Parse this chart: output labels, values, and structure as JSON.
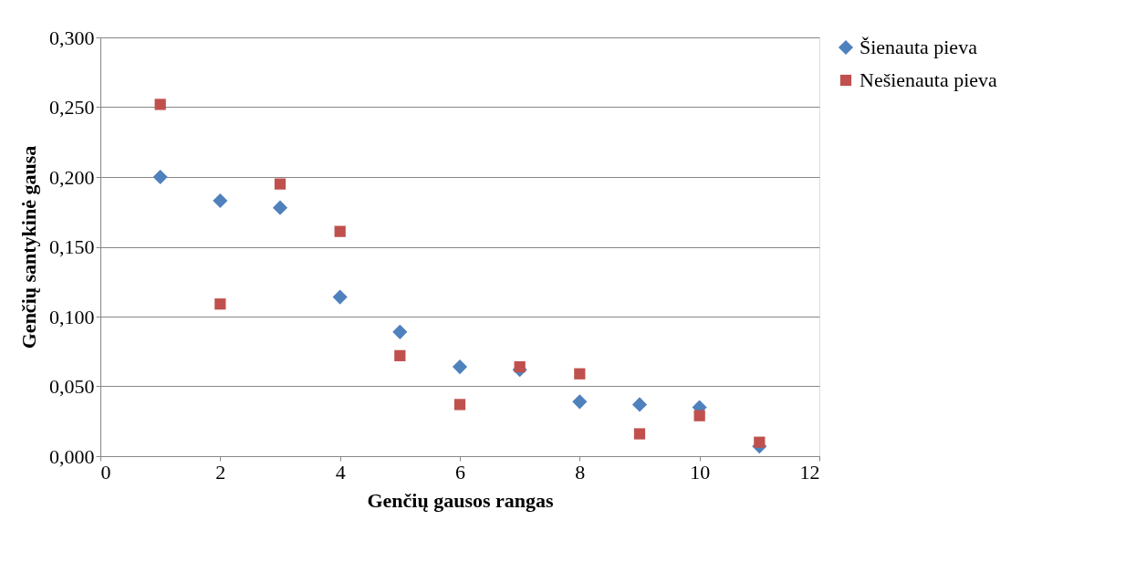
{
  "chart_data": {
    "type": "scatter",
    "xlabel": "Genčių gausos rangas",
    "ylabel": "Genčių santykinė gausa",
    "xlim": [
      0,
      12
    ],
    "xticks": [
      0,
      2,
      4,
      6,
      8,
      10,
      12
    ],
    "ylim": [
      0,
      0.3
    ],
    "yticks": [
      {
        "value": 0,
        "label": "0,000"
      },
      {
        "value": 0.05,
        "label": "0,050"
      },
      {
        "value": 0.1,
        "label": "0,100"
      },
      {
        "value": 0.15,
        "label": "0,150"
      },
      {
        "value": 0.2,
        "label": "0,200"
      },
      {
        "value": 0.25,
        "label": "0,250"
      },
      {
        "value": 0.3,
        "label": "0,300"
      }
    ],
    "grid": "y",
    "legend": "right",
    "series": [
      {
        "name": "Šienauta pieva",
        "color": "#4f81bd",
        "marker": "diamond",
        "x": [
          1,
          2,
          3,
          4,
          5,
          6,
          7,
          8,
          9,
          10,
          11
        ],
        "values": [
          0.2,
          0.183,
          0.178,
          0.114,
          0.089,
          0.064,
          0.062,
          0.039,
          0.037,
          0.035,
          0.007
        ]
      },
      {
        "name": "Nešienauta pieva",
        "color": "#c0504d",
        "marker": "square",
        "x": [
          1,
          2,
          3,
          4,
          5,
          6,
          7,
          8,
          9,
          10,
          11
        ],
        "values": [
          0.252,
          0.109,
          0.195,
          0.161,
          0.072,
          0.037,
          0.064,
          0.059,
          0.016,
          0.029,
          0.01
        ]
      }
    ]
  }
}
